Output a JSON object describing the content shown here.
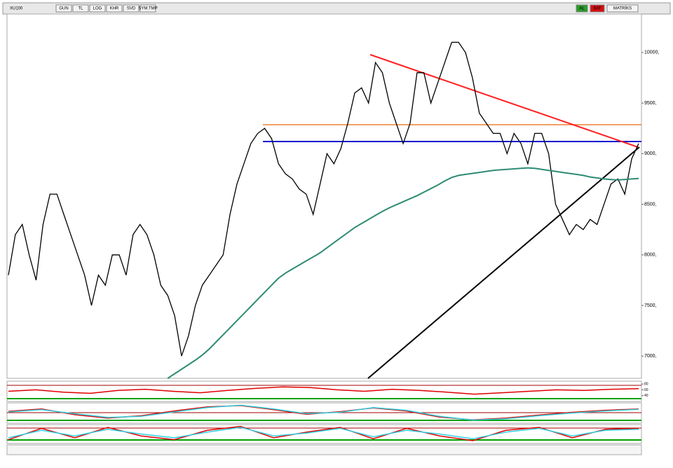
{
  "toolbar": {
    "symbol": "XU100",
    "buttons": [
      "GUN",
      "TL",
      "LOG",
      "KHR",
      "SVD",
      "SYM.TMP"
    ],
    "right": [
      "AL",
      "SAT",
      "MATRİKS"
    ]
  },
  "chart_data": [
    {
      "type": "line",
      "ylim": [
        6780,
        10380
      ],
      "yticks": [
        {
          "value": 7000,
          "label": "7000,"
        },
        {
          "value": 7500,
          "label": "7500,"
        },
        {
          "value": 8000,
          "label": "8000,"
        },
        {
          "value": 8500,
          "label": "8500,"
        },
        {
          "value": 9000,
          "label": "9000,"
        },
        {
          "value": 9500,
          "label": "9500,"
        },
        {
          "value": 10000,
          "label": "10000,"
        }
      ],
      "series": [
        {
          "color": "#000000",
          "values": [
            7800,
            8200,
            8300,
            8000,
            7750,
            8300,
            8600,
            8600,
            8400,
            8200,
            8000,
            7800,
            7500,
            7800,
            7700,
            8000,
            8000,
            7800,
            8200,
            8300,
            8200,
            8000,
            7700,
            7600,
            7400,
            7000,
            7200,
            7500,
            7700,
            7800,
            7900,
            8000,
            8400,
            8700,
            8900,
            9100,
            9200,
            9250,
            9150,
            8900,
            8800,
            8750,
            8650,
            8600,
            8400,
            8700,
            9000,
            8900,
            9050,
            9300,
            9600,
            9650,
            9500,
            9900,
            9800,
            9500,
            9300,
            9100,
            9300,
            9800,
            9800,
            9500,
            9700,
            9900,
            10100,
            10100,
            10000,
            9750,
            9400,
            9300,
            9200,
            9200,
            9000,
            9200,
            9100,
            8900,
            9200,
            9200,
            9000,
            8500,
            8350,
            8200,
            8300,
            8250,
            8350,
            8300,
            8500,
            8700,
            8750,
            8600,
            8950,
            9100
          ]
        },
        {
          "color": "#2e8b74",
          "values": [
            null,
            null,
            null,
            null,
            null,
            null,
            null,
            null,
            null,
            null,
            null,
            null,
            null,
            null,
            null,
            null,
            null,
            null,
            null,
            null,
            null,
            null,
            null,
            6780,
            6825,
            6870,
            6915,
            6960,
            7010,
            7070,
            7140,
            7210,
            7280,
            7350,
            7420,
            7490,
            7560,
            7630,
            7700,
            7770,
            7820,
            7860,
            7900,
            7940,
            7980,
            8020,
            8070,
            8120,
            8170,
            8220,
            8270,
            8310,
            8350,
            8390,
            8430,
            8465,
            8495,
            8525,
            8555,
            8585,
            8620,
            8655,
            8690,
            8730,
            8765,
            8785,
            8795,
            8805,
            8815,
            8825,
            8835,
            8840,
            8845,
            8850,
            8855,
            8860,
            8855,
            8845,
            8835,
            8825,
            8815,
            8805,
            8795,
            8785,
            8770,
            8760,
            8750,
            8745,
            8740,
            8745,
            8750,
            8755
          ]
        }
      ]
    },
    {
      "type": "line",
      "ylim": [
        20,
        90
      ],
      "yticks": [
        40,
        60,
        80
      ],
      "series": [
        {
          "color": "#e00000",
          "values": [
            55,
            60,
            52,
            48,
            58,
            62,
            55,
            50,
            58,
            65,
            70,
            68,
            60,
            55,
            62,
            58,
            52,
            45,
            50,
            55,
            60,
            58,
            62,
            64
          ]
        }
      ]
    },
    {
      "type": "line",
      "ylim": [
        -300,
        300
      ],
      "series": [
        {
          "color": "#e00000",
          "values": [
            50,
            120,
            -50,
            -150,
            -80,
            60,
            180,
            220,
            100,
            -40,
            40,
            150,
            60,
            -120,
            -200,
            -150,
            -60,
            20,
            80,
            120
          ]
        },
        {
          "color": "#30d0e0",
          "values": [
            30,
            100,
            -20,
            -130,
            -100,
            30,
            160,
            230,
            120,
            -20,
            20,
            160,
            80,
            -100,
            -210,
            -170,
            -80,
            0,
            60,
            110
          ]
        }
      ]
    },
    {
      "type": "line",
      "ylim": [
        0,
        100
      ],
      "series": [
        {
          "color": "#e00000",
          "values": [
            20,
            80,
            30,
            85,
            40,
            20,
            70,
            90,
            30,
            60,
            85,
            25,
            80,
            40,
            15,
            70,
            85,
            30,
            75,
            80
          ]
        },
        {
          "color": "#30d0e0",
          "values": [
            30,
            70,
            40,
            75,
            50,
            30,
            60,
            85,
            40,
            55,
            80,
            35,
            70,
            50,
            25,
            60,
            80,
            40,
            70,
            75
          ]
        }
      ]
    }
  ]
}
